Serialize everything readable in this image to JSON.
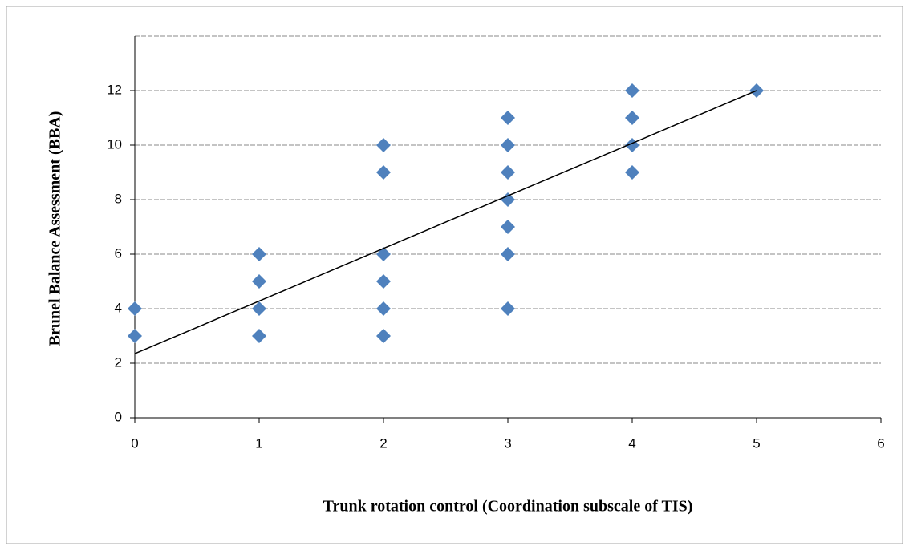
{
  "chart_data": {
    "type": "scatter",
    "x_label": "Trunk rotation control (Coordination subscale of TIS)",
    "y_label": "Brunel Balance Assessment (BBA)",
    "x": [
      0,
      0,
      1,
      1,
      1,
      1,
      2,
      2,
      2,
      2,
      2,
      2,
      3,
      3,
      3,
      3,
      3,
      3,
      3,
      4,
      4,
      4,
      4,
      5
    ],
    "y": [
      4,
      3,
      6,
      5,
      4,
      3,
      10,
      9,
      6,
      5,
      4,
      3,
      11,
      10,
      9,
      8,
      7,
      6,
      4,
      12,
      11,
      10,
      9,
      12
    ],
    "color": "#4f81bd",
    "trendline": {
      "x": [
        0,
        5
      ],
      "y": [
        2.35,
        12
      ],
      "color": "#000000"
    },
    "xlim": [
      0,
      6
    ],
    "xticks": [
      0,
      1,
      2,
      3,
      4,
      5,
      6
    ],
    "ylim": [
      0,
      14
    ],
    "yticks": [
      0,
      2,
      4,
      6,
      8,
      10,
      12
    ],
    "grid": true
  }
}
